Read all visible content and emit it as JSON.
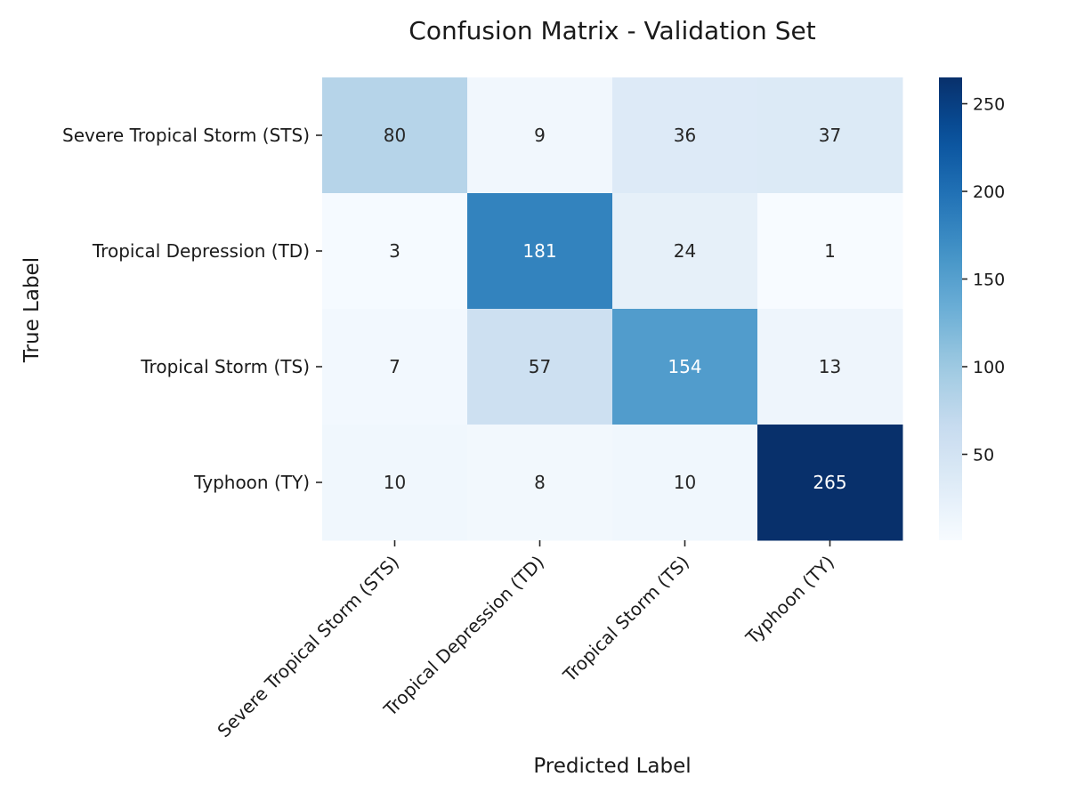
{
  "chart_data": {
    "type": "heatmap",
    "title": "Confusion Matrix - Validation Set",
    "xlabel": "Predicted Label",
    "ylabel": "True Label",
    "x_categories": [
      "Severe Tropical Storm (STS)",
      "Tropical Depression (TD)",
      "Tropical Storm (TS)",
      "Typhoon (TY)"
    ],
    "y_categories": [
      "Severe Tropical Storm (STS)",
      "Tropical Depression (TD)",
      "Tropical Storm (TS)",
      "Typhoon (TY)"
    ],
    "values": [
      [
        80,
        9,
        36,
        37
      ],
      [
        3,
        181,
        24,
        1
      ],
      [
        7,
        57,
        154,
        13
      ],
      [
        10,
        8,
        10,
        265
      ]
    ],
    "colormap": "Blues",
    "color_range": [
      1,
      265
    ],
    "colorbar_ticks": [
      50,
      100,
      150,
      200,
      250
    ],
    "colors": {
      "min": "#f7fbff",
      "max": "#08306b"
    },
    "grid": false,
    "legend": "colorbar-right"
  }
}
